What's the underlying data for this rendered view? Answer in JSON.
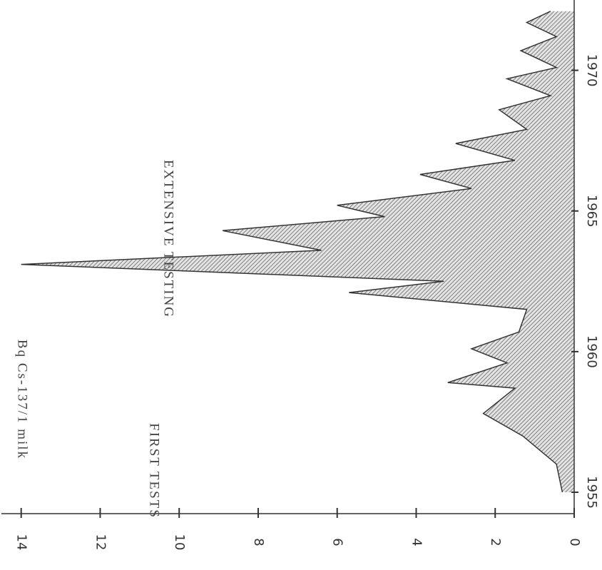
{
  "chart_data": {
    "type": "area",
    "y_label": "Bq Cs-137/1 milk",
    "annotations": [
      "FIRST TESTS",
      "EXTENSIVE TESTING"
    ],
    "x": [
      1955,
      1956,
      1957,
      1957.8,
      1958.7,
      1958.9,
      1959.6,
      1960.1,
      1960.7,
      1961.5,
      1962.1,
      1962.5,
      1963.1,
      1963.6,
      1964.3,
      1964.8,
      1965.2,
      1965.8,
      1966.3,
      1966.8,
      1967.4,
      1967.9,
      1968.6,
      1969.1,
      1969.7,
      1970.1,
      1970.7,
      1971.2,
      1971.7,
      1972.1
    ],
    "values": [
      0.3,
      0.45,
      1.3,
      2.3,
      1.5,
      3.2,
      1.7,
      2.6,
      1.4,
      1.2,
      5.7,
      3.3,
      14,
      6.4,
      8.9,
      4.8,
      6.0,
      2.6,
      3.9,
      1.5,
      3.0,
      1.2,
      1.9,
      0.6,
      1.7,
      0.45,
      1.35,
      0.45,
      1.2,
      0.6
    ],
    "color": "#9a9a9a",
    "xlim": [
      1954.24,
      1972.5
    ],
    "xticks": [
      1955,
      1960,
      1965,
      1970
    ],
    "ylim": [
      0,
      14.5
    ],
    "yticks": [
      0,
      2,
      4,
      6,
      8,
      10,
      12,
      14
    ]
  }
}
